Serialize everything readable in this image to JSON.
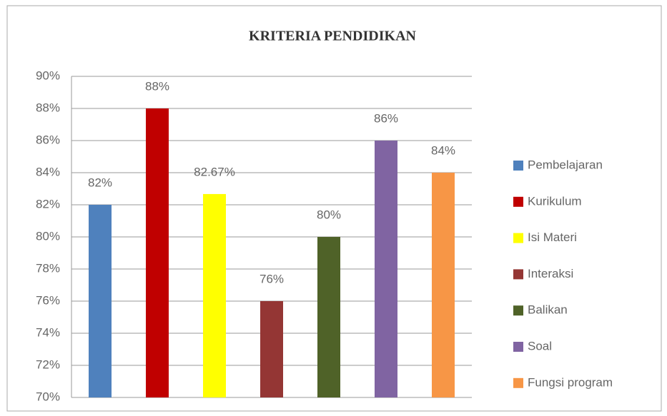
{
  "chart_data": {
    "type": "bar",
    "title": "KRITERIA PENDIDIKAN",
    "categories": [
      "Pembelajaran",
      "Kurikulum",
      "Isi Materi",
      "Interaksi",
      "Balikan",
      "Soal",
      "Fungsi program"
    ],
    "values": [
      82,
      88,
      82.67,
      76,
      80,
      86,
      84
    ],
    "value_labels": [
      "82%",
      "88%",
      "82.67%",
      "76%",
      "80%",
      "86%",
      "84%"
    ],
    "colors": [
      "#4f81bd",
      "#c00000",
      "#ffff00",
      "#943634",
      "#4f6228",
      "#8064a2",
      "#f79646"
    ],
    "ylim": [
      70,
      90
    ],
    "yticks": [
      {
        "value": 70,
        "label": "70%"
      },
      {
        "value": 72,
        "label": "72%"
      },
      {
        "value": 74,
        "label": "74%"
      },
      {
        "value": 76,
        "label": "76%"
      },
      {
        "value": 78,
        "label": "78%"
      },
      {
        "value": 80,
        "label": "80%"
      },
      {
        "value": 82,
        "label": "82%"
      },
      {
        "value": 84,
        "label": "84%"
      },
      {
        "value": 86,
        "label": "86%"
      },
      {
        "value": 88,
        "label": "88%"
      },
      {
        "value": 90,
        "label": "90%"
      }
    ],
    "grid": true,
    "legend": "right"
  }
}
